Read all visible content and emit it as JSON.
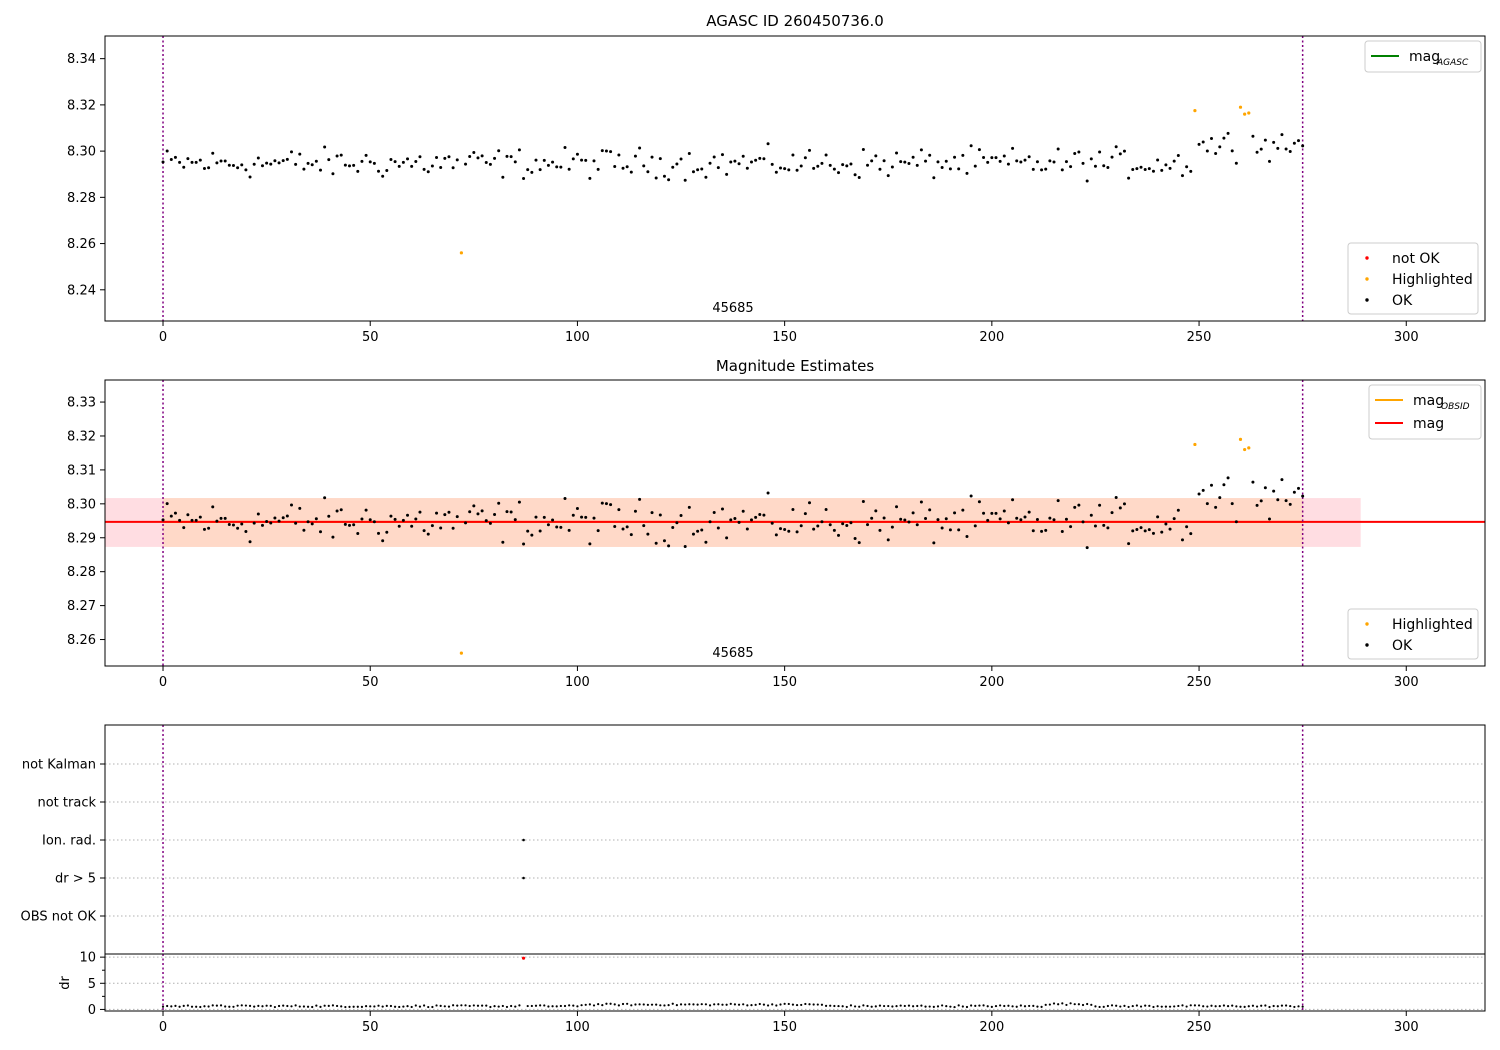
{
  "colors": {
    "ok": "#000000",
    "highlighted": "#ffa500",
    "not_ok": "#ff0000",
    "mag_agasc": "#008000",
    "mag_obsid": "#ffa500",
    "mag": "#ff0000",
    "band_outer": "#ffdde2",
    "band_inner": "#ffd9c8",
    "obs_line": "#800080",
    "grid": "#b0b0b0"
  },
  "chart_data": [
    {
      "id": "agasc",
      "type": "scatter",
      "title": "AGASC ID 260450736.0",
      "xlabel": "",
      "ylabel": "",
      "xlim": [
        -14,
        319
      ],
      "ylim": [
        8.2265,
        8.3498
      ],
      "xticks": [
        0,
        50,
        100,
        150,
        200,
        250,
        300
      ],
      "yticks": [
        8.24,
        8.26,
        8.28,
        8.3,
        8.32,
        8.34
      ],
      "ytick_labels": [
        "8.24",
        "8.26",
        "8.28",
        "8.30",
        "8.32",
        "8.34"
      ],
      "obsid_label": "45685",
      "obsid_label_x": 137.5,
      "obs_boundaries": [
        0,
        275
      ],
      "legend_top": [
        {
          "label": "mag",
          "sub": "AGASC",
          "kind": "line",
          "color_key": "mag_agasc"
        }
      ],
      "legend_bottom": [
        {
          "label": "not OK",
          "kind": "dot",
          "color_key": "not_ok"
        },
        {
          "label": "Highlighted",
          "kind": "dot",
          "color_key": "highlighted"
        },
        {
          "label": "OK",
          "kind": "dot",
          "color_key": "ok"
        }
      ],
      "legend_top_position": "upper-right",
      "legend_bottom_position": "lower-right",
      "highlighted_points": [
        [
          72,
          8.256
        ],
        [
          249,
          8.3175
        ],
        [
          260,
          8.319
        ],
        [
          261,
          8.316
        ],
        [
          262,
          8.3165
        ]
      ]
    },
    {
      "id": "mag_estimates",
      "type": "scatter",
      "title": "Magnitude Estimates",
      "xlabel": "",
      "ylabel": "",
      "xlim": [
        -14,
        319
      ],
      "ylim": [
        8.2522,
        8.3365
      ],
      "xticks": [
        0,
        50,
        100,
        150,
        200,
        250,
        300
      ],
      "yticks": [
        8.26,
        8.27,
        8.28,
        8.29,
        8.3,
        8.31,
        8.32,
        8.33
      ],
      "ytick_labels": [
        "8.26",
        "8.27",
        "8.28",
        "8.29",
        "8.30",
        "8.31",
        "8.32",
        "8.33"
      ],
      "obsid_label": "45685",
      "obsid_label_x": 137.5,
      "obs_boundaries": [
        0,
        275
      ],
      "mag_line": 8.2947,
      "mag_obsid_line": 8.2947,
      "band_outer": {
        "x": [
          -14,
          289
        ],
        "y": [
          8.2873,
          8.3017
        ]
      },
      "band_inner": {
        "x": [
          0,
          275
        ],
        "y": [
          8.2873,
          8.3017
        ]
      },
      "legend_top": [
        {
          "label": "mag",
          "sub": "OBSID",
          "kind": "line",
          "color_key": "mag_obsid"
        },
        {
          "label": "mag",
          "sub": "",
          "kind": "line",
          "color_key": "mag"
        }
      ],
      "legend_bottom": [
        {
          "label": "Highlighted",
          "kind": "dot",
          "color_key": "highlighted"
        },
        {
          "label": "OK",
          "kind": "dot",
          "color_key": "ok"
        }
      ],
      "legend_top_position": "upper-right",
      "legend_bottom_position": "lower-right",
      "highlighted_points": [
        [
          72,
          8.256
        ],
        [
          249,
          8.3175
        ],
        [
          260,
          8.319
        ],
        [
          261,
          8.316
        ],
        [
          262,
          8.3165
        ]
      ]
    },
    {
      "id": "flags",
      "type": "scatter",
      "title": "",
      "xlim": [
        -14,
        319
      ],
      "categories": [
        "not Kalman",
        "not track",
        "Ion. rad.",
        "dr > 5",
        "OBS not OK"
      ],
      "flag_points": [
        {
          "x": 87,
          "category": "Ion. rad."
        },
        {
          "x": 87,
          "category": "dr > 5"
        }
      ],
      "obs_boundaries": [
        0,
        275
      ]
    },
    {
      "id": "dr",
      "type": "scatter",
      "title": "",
      "xlabel": "",
      "ylabel": "dr",
      "xlim": [
        -14,
        319
      ],
      "ylim": [
        -0.3,
        10.6
      ],
      "xticks": [
        0,
        50,
        100,
        150,
        200,
        250,
        300
      ],
      "yticks": [
        0,
        5,
        10
      ],
      "ytick_labels": [
        "0",
        "5",
        "10"
      ],
      "outlier_points": [
        [
          87,
          9.8
        ]
      ],
      "obs_boundaries": [
        0,
        275
      ]
    }
  ]
}
